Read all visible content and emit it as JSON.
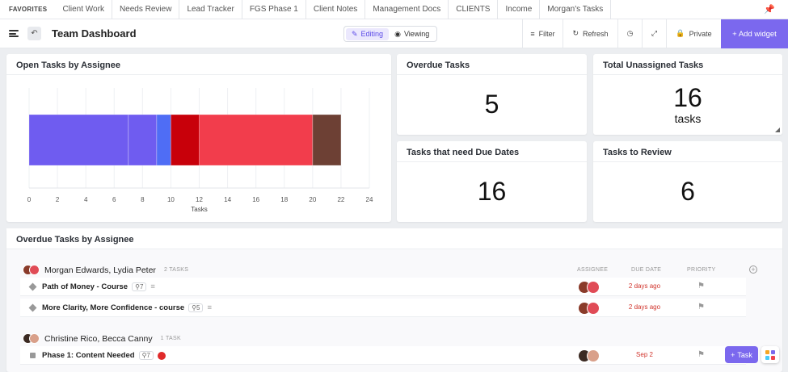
{
  "favorites": {
    "title": "FAVORITES",
    "items": [
      "Client Work",
      "Needs Review",
      "Lead Tracker",
      "FGS Phase 1",
      "Client Notes",
      "Management Docs",
      "CLIENTS",
      "Income",
      "Morgan's Tasks"
    ]
  },
  "header": {
    "title": "Team Dashboard",
    "toggle": {
      "editing": "Editing",
      "viewing": "Viewing",
      "active": "editing"
    },
    "filter": "Filter",
    "refresh": "Refresh",
    "private": "Private",
    "add_widget": "+ Add widget"
  },
  "widgets": {
    "open_tasks": {
      "title": "Open Tasks by Assignee",
      "chart_data": {
        "type": "bar",
        "orientation": "horizontal-stacked",
        "segments": [
          {
            "value": 7,
            "color": "#6f5cf0"
          },
          {
            "value": 2,
            "color": "#6f5cf0"
          },
          {
            "value": 1,
            "color": "#4f6df5"
          },
          {
            "value": 2,
            "color": "#c8000a"
          },
          {
            "value": 8,
            "color": "#f23d4c"
          },
          {
            "value": 2,
            "color": "#6d4034"
          }
        ],
        "xlabel": "Tasks",
        "xlim": [
          0,
          24
        ],
        "xticks": [
          "0",
          "2",
          "4",
          "6",
          "8",
          "10",
          "12",
          "14",
          "16",
          "18",
          "20",
          "22",
          "24"
        ],
        "grid": true
      }
    },
    "overdue": {
      "title": "Overdue Tasks",
      "value": "5"
    },
    "unassigned": {
      "title": "Total Unassigned Tasks",
      "value": "16",
      "unit": "tasks"
    },
    "due_dates": {
      "title": "Tasks that need Due Dates",
      "value": "16"
    },
    "review": {
      "title": "Tasks to Review",
      "value": "6"
    }
  },
  "overdue_list": {
    "title": "Overdue Tasks by Assignee",
    "columns": {
      "assignee": "ASSIGNEE",
      "due": "DUE DATE",
      "priority": "PRIORITY"
    },
    "groups": [
      {
        "name": "Morgan Edwards, Lydia Peter",
        "count": "2 TASKS",
        "tasks": [
          {
            "name": "Path of Money - Course",
            "subtasks": "7",
            "due": "2 days ago"
          },
          {
            "name": "More Clarity, More Confidence - course",
            "subtasks": "5",
            "due": "2 days ago"
          }
        ]
      },
      {
        "name": "Christine Rico, Becca Canny",
        "count": "1 TASK",
        "tasks": [
          {
            "name": "Phase 1: Content Needed",
            "subtasks": "7",
            "due": "Sep 2"
          }
        ]
      }
    ]
  },
  "fab": {
    "task": "Task"
  }
}
